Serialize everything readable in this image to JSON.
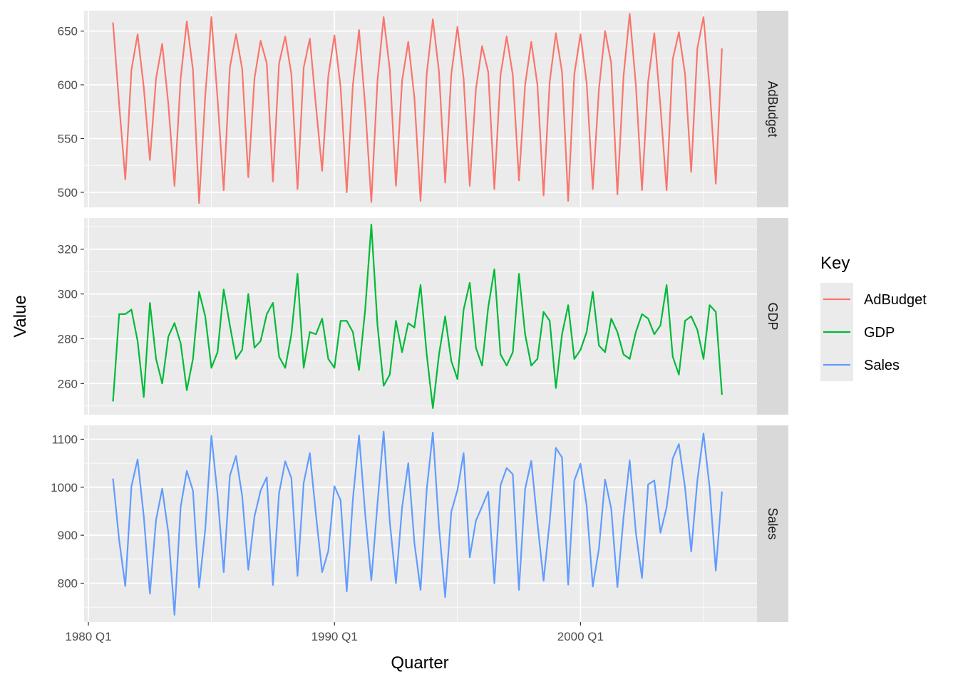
{
  "chart_data": {
    "type": "line",
    "xlabel": "Quarter",
    "ylabel": "Value",
    "x_start": "1981 Q1",
    "x_end": "2005 Q4",
    "xlim": [
      "1980 Q1",
      "2007 Q1"
    ],
    "x_tick_labels": [
      "1980 Q1",
      "1990 Q1",
      "2000 Q1"
    ],
    "grid": true,
    "legend": {
      "title": "Key",
      "position": "right",
      "entries": [
        {
          "label": "AdBudget",
          "color": "#F8766D"
        },
        {
          "label": "GDP",
          "color": "#00BA38"
        },
        {
          "label": "Sales",
          "color": "#619CFF"
        }
      ]
    },
    "panels": [
      {
        "name": "AdBudget",
        "color": "#F8766D",
        "ylim": [
          490,
          665
        ],
        "y_ticks": [
          500,
          550,
          600,
          650
        ],
        "values": [
          658,
          582,
          512,
          614,
          647,
          598,
          530,
          606,
          638,
          582,
          506,
          606,
          659,
          614,
          490,
          590,
          663,
          587,
          502,
          616,
          647,
          615,
          514,
          606,
          641,
          620,
          510,
          620,
          645,
          610,
          503,
          616,
          643,
          580,
          520,
          608,
          646,
          598,
          500,
          600,
          651,
          580,
          491,
          604,
          663,
          614,
          506,
          604,
          640,
          588,
          492,
          610,
          661,
          612,
          509,
          610,
          654,
          606,
          506,
          596,
          636,
          612,
          503,
          609,
          645,
          609,
          511,
          600,
          640,
          600,
          497,
          603,
          648,
          612,
          492,
          610,
          647,
          602,
          503,
          596,
          650,
          620,
          498,
          608,
          666,
          600,
          502,
          603,
          648,
          580,
          502,
          624,
          649,
          610,
          519,
          634,
          663,
          597,
          508,
          634
        ]
      },
      {
        "name": "GDP",
        "color": "#00BA38",
        "ylim": [
          248,
          332
        ],
        "y_ticks": [
          260,
          280,
          300,
          320
        ],
        "values": [
          252,
          291,
          291,
          293,
          279,
          254,
          296,
          271,
          260,
          281,
          287,
          278,
          257,
          271,
          301,
          290,
          267,
          274,
          302,
          286,
          271,
          275,
          300,
          276,
          279,
          291,
          296,
          272,
          267,
          282,
          309,
          267,
          283,
          282,
          289,
          271,
          267,
          288,
          288,
          283,
          266,
          293,
          331,
          286,
          259,
          264,
          288,
          274,
          287,
          285,
          304,
          273,
          249,
          273,
          290,
          270,
          262,
          293,
          305,
          276,
          268,
          294,
          311,
          273,
          268,
          274,
          309,
          282,
          268,
          271,
          292,
          288,
          258,
          282,
          295,
          271,
          275,
          283,
          301,
          277,
          274,
          289,
          283,
          273,
          271,
          283,
          291,
          289,
          282,
          286,
          304,
          272,
          264,
          288,
          290,
          284,
          271,
          295,
          292,
          255
        ]
      },
      {
        "name": "Sales",
        "color": "#619CFF",
        "ylim": [
          728,
          1120
        ],
        "y_ticks": [
          800,
          900,
          1000,
          1100
        ],
        "values": [
          1018,
          890,
          794,
          1002,
          1058,
          940,
          778,
          932,
          997,
          905,
          734,
          959,
          1034,
          993,
          791,
          912,
          1107,
          984,
          823,
          1024,
          1065,
          982,
          828,
          939,
          993,
          1021,
          796,
          988,
          1054,
          1019,
          815,
          1009,
          1071,
          942,
          823,
          867,
          1002,
          973,
          783,
          975,
          1108,
          944,
          806,
          966,
          1116,
          928,
          800,
          958,
          1050,
          884,
          786,
          995,
          1114,
          917,
          771,
          949,
          994,
          1071,
          854,
          930,
          960,
          991,
          800,
          1004,
          1040,
          1027,
          786,
          996,
          1055,
          926,
          805,
          930,
          1082,
          1062,
          797,
          1014,
          1049,
          962,
          793,
          872,
          1016,
          955,
          792,
          937,
          1056,
          906,
          811,
          1006,
          1014,
          905,
          958,
          1060,
          1090,
          999,
          866,
          1014,
          1112,
          999,
          826,
          991
        ]
      }
    ]
  }
}
